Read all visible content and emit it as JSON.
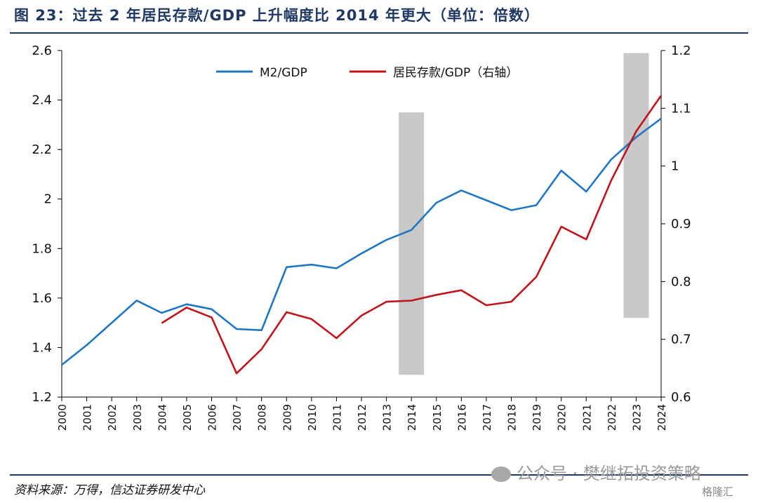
{
  "title": "图 23：过去 2 年居民存款/GDP 上升幅度比 2014 年更大（单位：倍数）",
  "source": "资料来源：万得，信达证券研发中心",
  "watermark": "公众号 · 樊继拓投资策略",
  "watermark2": "格隆汇",
  "chart_data": {
    "type": "line",
    "categories": [
      "2000",
      "2001",
      "2002",
      "2003",
      "2004",
      "2005",
      "2006",
      "2007",
      "2008",
      "2009",
      "2010",
      "2011",
      "2012",
      "2013",
      "2014",
      "2015",
      "2016",
      "2017",
      "2018",
      "2019",
      "2020",
      "2021",
      "2022",
      "2023",
      "2024"
    ],
    "left_axis": {
      "ylim": [
        1.2,
        2.6
      ],
      "ticks": [
        "1.2",
        "1.4",
        "1.6",
        "1.8",
        "2",
        "2.2",
        "2.4",
        "2.6"
      ]
    },
    "right_axis": {
      "ylim": [
        0.6,
        1.2
      ],
      "ticks": [
        "0.6",
        "0.7",
        "0.8",
        "0.9",
        "1",
        "1.1",
        "1.2"
      ]
    },
    "series": [
      {
        "name": "M2/GDP",
        "axis": "left",
        "color": "#1f77c4",
        "values": [
          1.33,
          1.41,
          1.5,
          1.59,
          1.54,
          1.575,
          1.555,
          1.475,
          1.47,
          1.725,
          1.735,
          1.72,
          1.78,
          1.835,
          1.875,
          1.985,
          2.035,
          1.995,
          1.955,
          1.975,
          2.115,
          2.03,
          2.16,
          2.25,
          2.325
        ]
      },
      {
        "name": "居民存款/GDP（右轴）",
        "axis": "right",
        "color": "#c0141c",
        "values": [
          null,
          null,
          null,
          null,
          0.728,
          0.755,
          0.738,
          0.641,
          0.683,
          0.747,
          0.735,
          0.702,
          0.741,
          0.765,
          0.767,
          0.777,
          0.785,
          0.759,
          0.765,
          0.808,
          0.895,
          0.873,
          0.975,
          1.06,
          1.122
        ]
      }
    ],
    "shaded_regions": [
      {
        "from": "2014",
        "bar_top": 2.35,
        "bar_bottom": 1.29
      },
      {
        "from": "2023",
        "bar_top": 2.59,
        "bar_bottom": 1.52
      }
    ],
    "legend_position": "top"
  }
}
